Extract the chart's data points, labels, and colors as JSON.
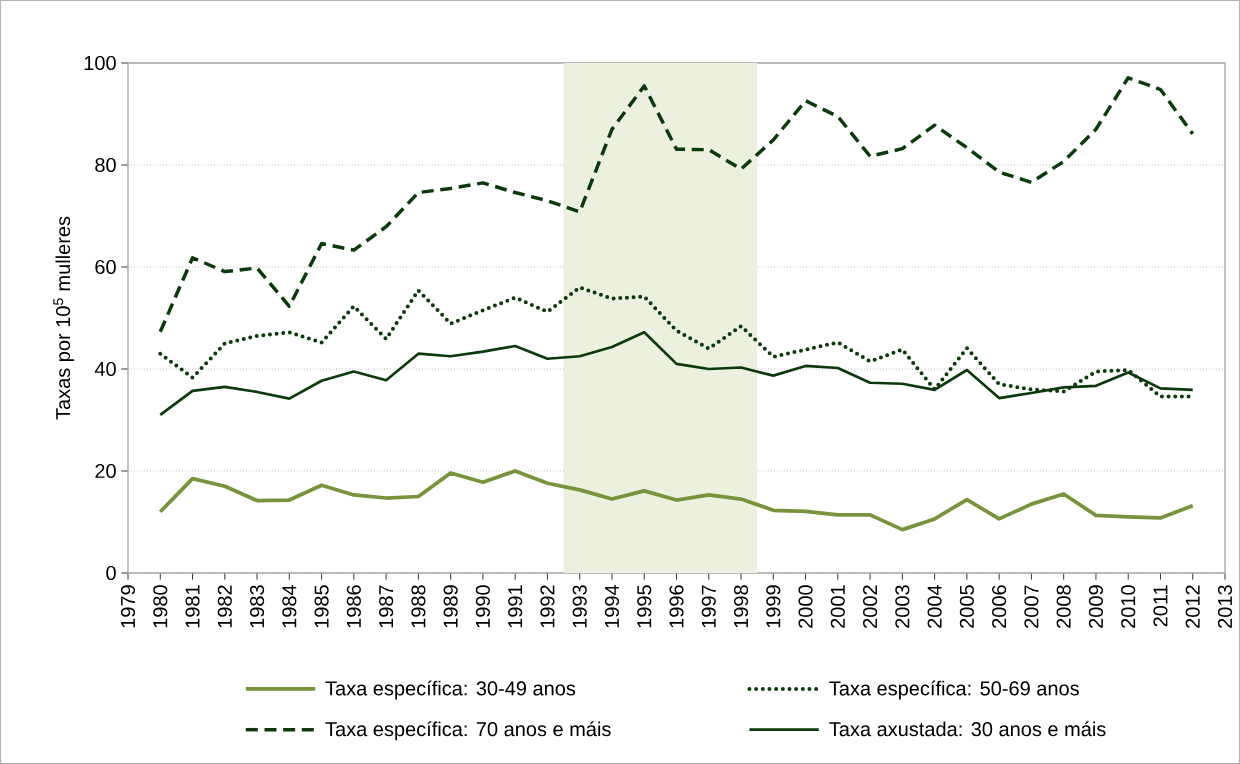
{
  "chart_data": {
    "type": "line",
    "ylabel": "Taxas por 10$^{5}$ mulleres",
    "x": [
      1980,
      1981,
      1982,
      1983,
      1984,
      1985,
      1986,
      1987,
      1988,
      1989,
      1990,
      1991,
      1992,
      1993,
      1994,
      1995,
      1996,
      1997,
      1998,
      1999,
      2000,
      2001,
      2002,
      2003,
      2004,
      2005,
      2006,
      2007,
      2008,
      2009,
      2010,
      2011,
      2012
    ],
    "series": [
      {
        "name": "Taxa específica: 30-49 anos",
        "color": "#77933c",
        "line_style": "solid",
        "values": [
          12,
          18.5,
          17,
          14.2,
          14.3,
          17.2,
          15.3,
          14.7,
          15,
          19.6,
          17.8,
          20,
          17.6,
          16.3,
          14.5,
          16.1,
          14.3,
          15.3,
          14.5,
          12.3,
          12.1,
          11.4,
          11.4,
          8.5,
          10.6,
          14.4,
          10.6,
          13.5,
          15.5,
          11.3,
          11,
          10.8,
          13.2
        ]
      },
      {
        "name": "Taxa específica: 50-69 anos",
        "color": "#0a3a0a",
        "line_style": "dotted",
        "values": [
          43,
          38.3,
          45,
          46.5,
          47.2,
          45.2,
          52.3,
          45.9,
          55.4,
          48.9,
          51.5,
          54,
          51.2,
          56,
          53.8,
          54.2,
          47.5,
          44,
          48.4,
          42.4,
          43.8,
          45.2,
          41.5,
          43.8,
          36,
          44.1,
          37,
          36,
          35.6,
          39.5,
          39.8,
          34.6,
          34.6
        ]
      },
      {
        "name": "Taxa específica: 70 anos e máis",
        "color": "#0a3a0a",
        "line_style": "dashed",
        "values": [
          47.3,
          61.8,
          59.1,
          59.8,
          52.3,
          64.6,
          63.3,
          67.9,
          74.6,
          75.4,
          76.5,
          74.6,
          73,
          70.8,
          87,
          95.5,
          83.1,
          83,
          79.2,
          84.9,
          92.6,
          89.5,
          81.7,
          83.2,
          87.8,
          83.4,
          78.6,
          76.6,
          80.7,
          87,
          97.1,
          94.8,
          86.1
        ]
      },
      {
        "name": "Taxa axustada: 30 anos e máis",
        "color": "#0a3a0a",
        "line_style": "solid",
        "values": [
          31,
          35.7,
          36.5,
          35.5,
          34.2,
          37.7,
          39.5,
          37.8,
          43,
          42.5,
          43.4,
          44.5,
          42,
          42.5,
          44.3,
          47.2,
          41,
          40,
          40.3,
          38.7,
          40.6,
          40.2,
          37.3,
          37.1,
          35.9,
          39.8,
          34.3,
          35.3,
          36.4,
          36.7,
          39.3,
          36.2,
          35.9
        ]
      }
    ],
    "xlim": [
      1979,
      2013
    ],
    "xticks": [
      1979,
      1980,
      1981,
      1982,
      1983,
      1984,
      1985,
      1986,
      1987,
      1988,
      1989,
      1990,
      1991,
      1992,
      1993,
      1994,
      1995,
      1996,
      1997,
      1998,
      1999,
      2000,
      2001,
      2002,
      2003,
      2004,
      2005,
      2006,
      2007,
      2008,
      2009,
      2010,
      2011,
      2012,
      2013
    ],
    "ylim": [
      0,
      100
    ],
    "yticks": [
      0,
      20,
      40,
      60,
      80,
      100
    ],
    "bands": [
      {
        "axis": "x",
        "from": 1992.5,
        "to": 1998.5,
        "color": "#ebf1de"
      }
    ],
    "grid": "y",
    "legend": "bottom"
  }
}
